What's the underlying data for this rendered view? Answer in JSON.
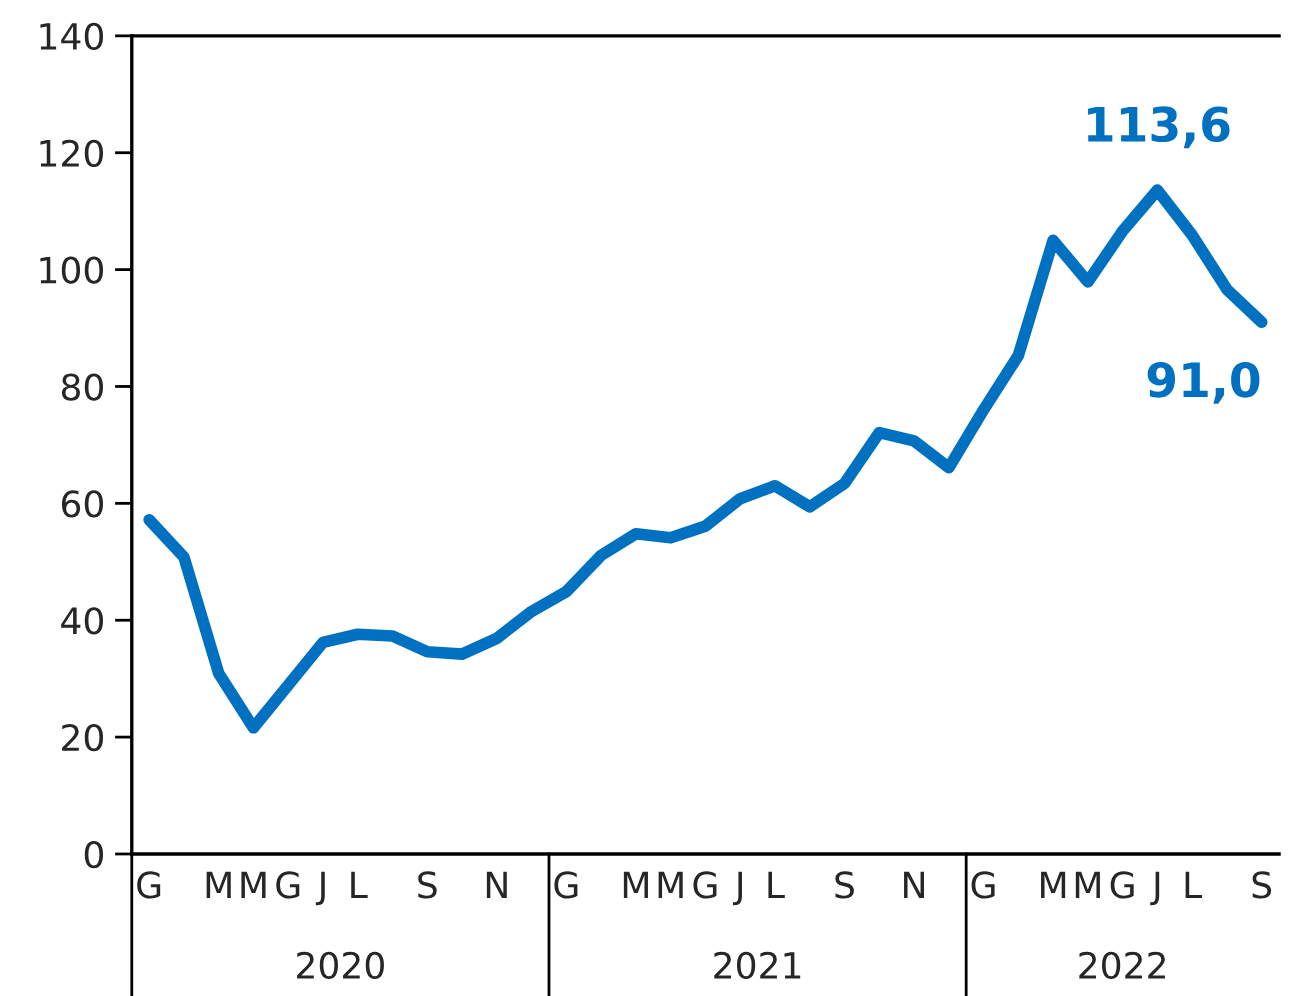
{
  "chart_data": {
    "type": "line",
    "categories": [
      "G",
      null,
      "M",
      "M",
      "G",
      "J",
      "L",
      null,
      "S",
      null,
      "N",
      null,
      "G",
      null,
      "M",
      "M",
      "G",
      "J",
      "L",
      null,
      "S",
      null,
      "N",
      null,
      "G",
      null,
      "M",
      "M",
      "G",
      "J",
      "L",
      null,
      "S"
    ],
    "series": [
      {
        "color": "#0070c0",
        "values": [
          57.2,
          50.8,
          30.9,
          21.6,
          28.9,
          36.2,
          37.6,
          37.3,
          34.6,
          34.2,
          36.9,
          41.5,
          44.9,
          51.1,
          54.8,
          54.1,
          56.1,
          60.8,
          63.0,
          59.4,
          63.4,
          72.1,
          70.7,
          66.1,
          76.0,
          85.3,
          105.0,
          97.9,
          106.6,
          113.6,
          105.9,
          96.6,
          91.0
        ],
        "value_labels": [
          null,
          null,
          null,
          null,
          null,
          null,
          null,
          null,
          null,
          null,
          null,
          null,
          null,
          null,
          null,
          null,
          null,
          null,
          null,
          null,
          null,
          null,
          null,
          null,
          null,
          null,
          null,
          null,
          null,
          "113,6",
          null,
          null,
          "91,0"
        ]
      }
    ],
    "ylim": [
      0,
      140
    ],
    "yticks": [
      0,
      20,
      40,
      60,
      80,
      100,
      120,
      140
    ],
    "annotations": [
      "2020",
      "2021",
      "2022"
    ],
    "grid": false,
    "legend": false,
    "marker": "none",
    "line_style": "solid"
  }
}
